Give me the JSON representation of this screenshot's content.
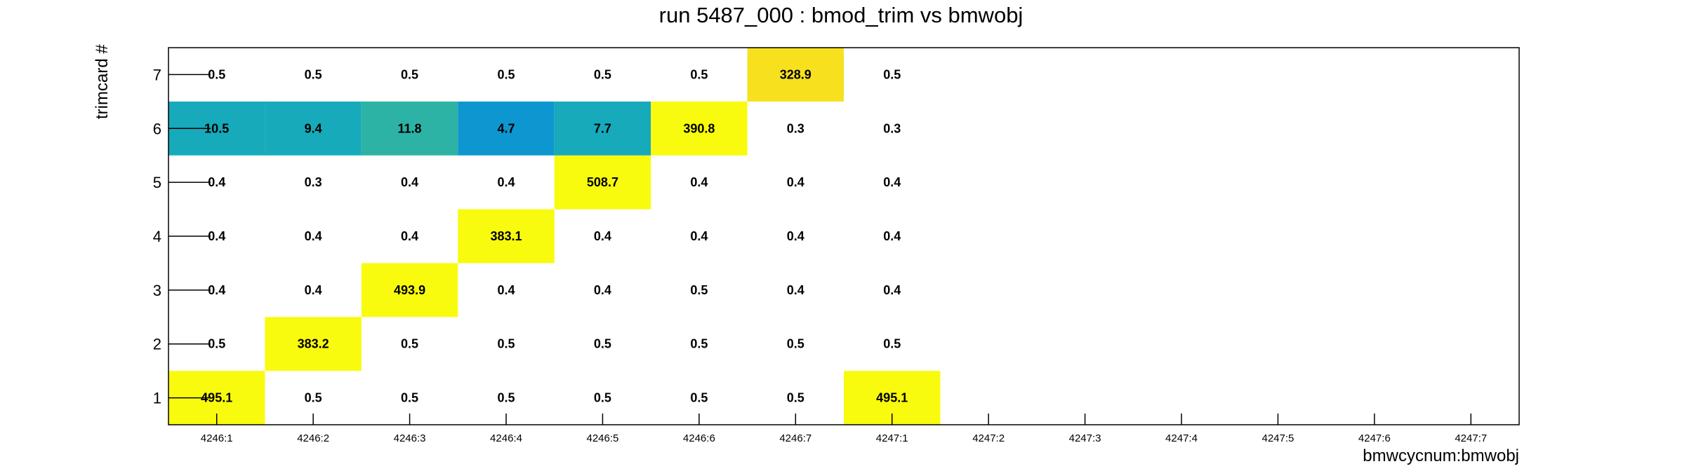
{
  "chart_data": {
    "type": "heatmap",
    "title": "run 5487_000 : bmod_trim vs bmwobj",
    "xlabel": "bmwcycnum:bmwobj",
    "ylabel": "trimcard #",
    "x_categories": [
      "4246:1",
      "4246:2",
      "4246:3",
      "4246:4",
      "4246:5",
      "4246:6",
      "4246:7",
      "4247:1",
      "4247:2",
      "4247:3",
      "4247:4",
      "4247:5",
      "4247:6",
      "4247:7"
    ],
    "y_categories": [
      "1",
      "2",
      "3",
      "4",
      "5",
      "6",
      "7"
    ],
    "grid": false,
    "colormap": "viridis-like (blue to yellow)",
    "color_range": [
      0,
      12
    ],
    "cells": [
      {
        "x": "4246:1",
        "y": "1",
        "value": 495.1,
        "label": "495.1"
      },
      {
        "x": "4246:2",
        "y": "1",
        "value": 0.5,
        "label": "0.5"
      },
      {
        "x": "4246:3",
        "y": "1",
        "value": 0.5,
        "label": "0.5"
      },
      {
        "x": "4246:4",
        "y": "1",
        "value": 0.5,
        "label": "0.5"
      },
      {
        "x": "4246:5",
        "y": "1",
        "value": 0.5,
        "label": "0.5"
      },
      {
        "x": "4246:6",
        "y": "1",
        "value": 0.5,
        "label": "0.5"
      },
      {
        "x": "4246:7",
        "y": "1",
        "value": 0.5,
        "label": "0.5"
      },
      {
        "x": "4247:1",
        "y": "1",
        "value": 495.1,
        "label": "495.1"
      },
      {
        "x": "4246:1",
        "y": "2",
        "value": 0.5,
        "label": "0.5"
      },
      {
        "x": "4246:2",
        "y": "2",
        "value": 383.2,
        "label": "383.2"
      },
      {
        "x": "4246:3",
        "y": "2",
        "value": 0.5,
        "label": "0.5"
      },
      {
        "x": "4246:4",
        "y": "2",
        "value": 0.5,
        "label": "0.5"
      },
      {
        "x": "4246:5",
        "y": "2",
        "value": 0.5,
        "label": "0.5"
      },
      {
        "x": "4246:6",
        "y": "2",
        "value": 0.5,
        "label": "0.5"
      },
      {
        "x": "4246:7",
        "y": "2",
        "value": 0.5,
        "label": "0.5"
      },
      {
        "x": "4247:1",
        "y": "2",
        "value": 0.5,
        "label": "0.5"
      },
      {
        "x": "4246:1",
        "y": "3",
        "value": 0.4,
        "label": "0.4"
      },
      {
        "x": "4246:2",
        "y": "3",
        "value": 0.4,
        "label": "0.4"
      },
      {
        "x": "4246:3",
        "y": "3",
        "value": 493.9,
        "label": "493.9"
      },
      {
        "x": "4246:4",
        "y": "3",
        "value": 0.4,
        "label": "0.4"
      },
      {
        "x": "4246:5",
        "y": "3",
        "value": 0.4,
        "label": "0.4"
      },
      {
        "x": "4246:6",
        "y": "3",
        "value": 0.5,
        "label": "0.5"
      },
      {
        "x": "4246:7",
        "y": "3",
        "value": 0.4,
        "label": "0.4"
      },
      {
        "x": "4247:1",
        "y": "3",
        "value": 0.4,
        "label": "0.4"
      },
      {
        "x": "4246:1",
        "y": "4",
        "value": 0.4,
        "label": "0.4"
      },
      {
        "x": "4246:2",
        "y": "4",
        "value": 0.4,
        "label": "0.4"
      },
      {
        "x": "4246:3",
        "y": "4",
        "value": 0.4,
        "label": "0.4"
      },
      {
        "x": "4246:4",
        "y": "4",
        "value": 383.1,
        "label": "383.1"
      },
      {
        "x": "4246:5",
        "y": "4",
        "value": 0.4,
        "label": "0.4"
      },
      {
        "x": "4246:6",
        "y": "4",
        "value": 0.4,
        "label": "0.4"
      },
      {
        "x": "4246:7",
        "y": "4",
        "value": 0.4,
        "label": "0.4"
      },
      {
        "x": "4247:1",
        "y": "4",
        "value": 0.4,
        "label": "0.4"
      },
      {
        "x": "4246:1",
        "y": "5",
        "value": 0.4,
        "label": "0.4"
      },
      {
        "x": "4246:2",
        "y": "5",
        "value": 0.3,
        "label": "0.3"
      },
      {
        "x": "4246:3",
        "y": "5",
        "value": 0.4,
        "label": "0.4"
      },
      {
        "x": "4246:4",
        "y": "5",
        "value": 0.4,
        "label": "0.4"
      },
      {
        "x": "4246:5",
        "y": "5",
        "value": 508.7,
        "label": "508.7"
      },
      {
        "x": "4246:6",
        "y": "5",
        "value": 0.4,
        "label": "0.4"
      },
      {
        "x": "4246:7",
        "y": "5",
        "value": 0.4,
        "label": "0.4"
      },
      {
        "x": "4247:1",
        "y": "5",
        "value": 0.4,
        "label": "0.4"
      },
      {
        "x": "4246:1",
        "y": "6",
        "value": 10.5,
        "label": "10.5"
      },
      {
        "x": "4246:2",
        "y": "6",
        "value": 9.4,
        "label": "9.4"
      },
      {
        "x": "4246:3",
        "y": "6",
        "value": 11.8,
        "label": "11.8"
      },
      {
        "x": "4246:4",
        "y": "6",
        "value": 4.7,
        "label": "4.7"
      },
      {
        "x": "4246:5",
        "y": "6",
        "value": 7.7,
        "label": "7.7"
      },
      {
        "x": "4246:6",
        "y": "6",
        "value": 390.8,
        "label": "390.8"
      },
      {
        "x": "4246:7",
        "y": "6",
        "value": 0.3,
        "label": "0.3"
      },
      {
        "x": "4247:1",
        "y": "6",
        "value": 0.3,
        "label": "0.3"
      },
      {
        "x": "4246:1",
        "y": "7",
        "value": 0.5,
        "label": "0.5"
      },
      {
        "x": "4246:2",
        "y": "7",
        "value": 0.5,
        "label": "0.5"
      },
      {
        "x": "4246:3",
        "y": "7",
        "value": 0.5,
        "label": "0.5"
      },
      {
        "x": "4246:4",
        "y": "7",
        "value": 0.5,
        "label": "0.5"
      },
      {
        "x": "4246:5",
        "y": "7",
        "value": 0.5,
        "label": "0.5"
      },
      {
        "x": "4246:6",
        "y": "7",
        "value": 0.5,
        "label": "0.5"
      },
      {
        "x": "4246:7",
        "y": "7",
        "value": 328.9,
        "label": "328.9"
      },
      {
        "x": "4247:1",
        "y": "7",
        "value": 0.5,
        "label": "0.5"
      }
    ]
  },
  "colors": {
    "low_blue": "#0e96d0",
    "teal": "#17aaba",
    "mid_teal": "#2db3a5",
    "gold": "#f7e11e",
    "yellow": "#f9fb0e",
    "frame": "#000000"
  }
}
